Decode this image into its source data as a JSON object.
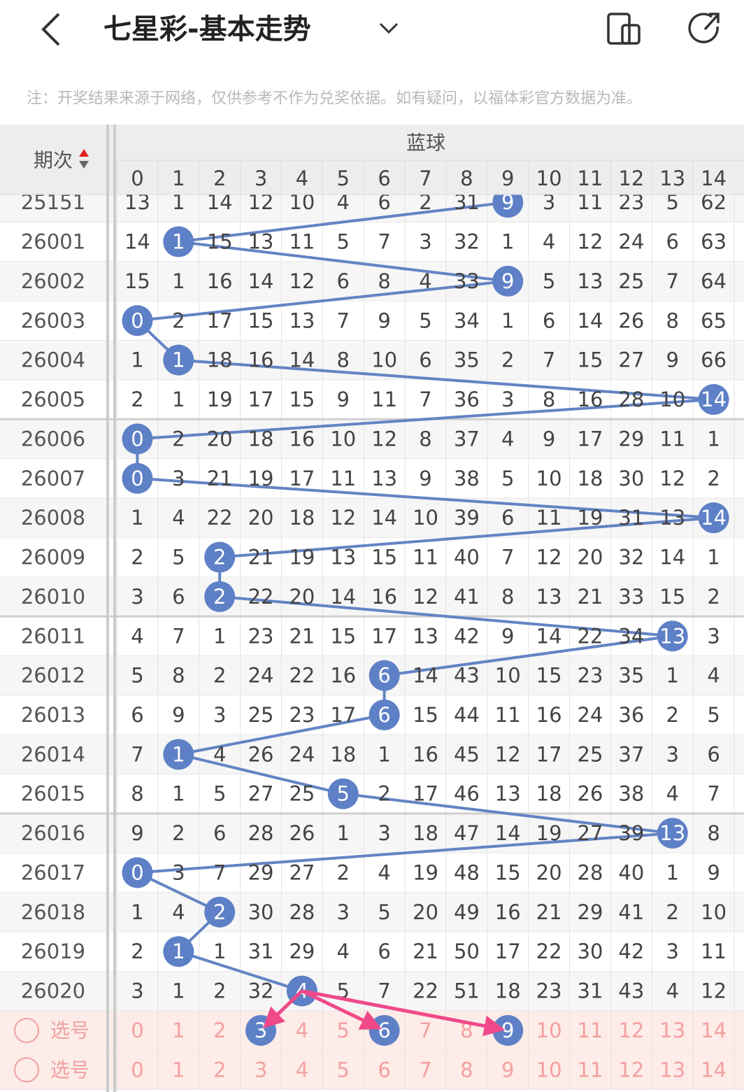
{
  "header": {
    "title": "七星彩-基本走势",
    "notice": "注：开奖结果来源于网络，仅供参考不作为兑奖依据。如有疑问，以福体彩官方数据为准。"
  },
  "table": {
    "period_header": "期次",
    "group_header": "蓝球",
    "columns": [
      0,
      1,
      2,
      3,
      4,
      5,
      6,
      7,
      8,
      9,
      10,
      11,
      12,
      13,
      14
    ],
    "rows": [
      {
        "period": "25151",
        "ball": 9,
        "cells": [
          13,
          1,
          14,
          12,
          10,
          4,
          6,
          2,
          31,
          9,
          3,
          11,
          23,
          5,
          62
        ]
      },
      {
        "period": "26001",
        "ball": 1,
        "cells": [
          14,
          1,
          15,
          13,
          11,
          5,
          7,
          3,
          32,
          1,
          4,
          12,
          24,
          6,
          63
        ]
      },
      {
        "period": "26002",
        "ball": 9,
        "cells": [
          15,
          1,
          16,
          14,
          12,
          6,
          8,
          4,
          33,
          9,
          5,
          13,
          25,
          7,
          64
        ]
      },
      {
        "period": "26003",
        "ball": 0,
        "cells": [
          0,
          2,
          17,
          15,
          13,
          7,
          9,
          5,
          34,
          1,
          6,
          14,
          26,
          8,
          65
        ]
      },
      {
        "period": "26004",
        "ball": 1,
        "cells": [
          1,
          1,
          18,
          16,
          14,
          8,
          10,
          6,
          35,
          2,
          7,
          15,
          27,
          9,
          66
        ]
      },
      {
        "period": "26005",
        "ball": 14,
        "cells": [
          2,
          1,
          19,
          17,
          15,
          9,
          11,
          7,
          36,
          3,
          8,
          16,
          28,
          10,
          14
        ]
      },
      {
        "period": "26006",
        "ball": 0,
        "cells": [
          0,
          2,
          20,
          18,
          16,
          10,
          12,
          8,
          37,
          4,
          9,
          17,
          29,
          11,
          1
        ]
      },
      {
        "period": "26007",
        "ball": 0,
        "cells": [
          0,
          3,
          21,
          19,
          17,
          11,
          13,
          9,
          38,
          5,
          10,
          18,
          30,
          12,
          2
        ]
      },
      {
        "period": "26008",
        "ball": 14,
        "cells": [
          1,
          4,
          22,
          20,
          18,
          12,
          14,
          10,
          39,
          6,
          11,
          19,
          31,
          13,
          14
        ]
      },
      {
        "period": "26009",
        "ball": 2,
        "cells": [
          2,
          5,
          2,
          21,
          19,
          13,
          15,
          11,
          40,
          7,
          12,
          20,
          32,
          14,
          1
        ]
      },
      {
        "period": "26010",
        "ball": 2,
        "cells": [
          3,
          6,
          2,
          22,
          20,
          14,
          16,
          12,
          41,
          8,
          13,
          21,
          33,
          15,
          2
        ]
      },
      {
        "period": "26011",
        "ball": 13,
        "cells": [
          4,
          7,
          1,
          23,
          21,
          15,
          17,
          13,
          42,
          9,
          14,
          22,
          34,
          13,
          3
        ]
      },
      {
        "period": "26012",
        "ball": 6,
        "cells": [
          5,
          8,
          2,
          24,
          22,
          16,
          6,
          14,
          43,
          10,
          15,
          23,
          35,
          1,
          4
        ]
      },
      {
        "period": "26013",
        "ball": 6,
        "cells": [
          6,
          9,
          3,
          25,
          23,
          17,
          6,
          15,
          44,
          11,
          16,
          24,
          36,
          2,
          5
        ]
      },
      {
        "period": "26014",
        "ball": 1,
        "cells": [
          7,
          1,
          4,
          26,
          24,
          18,
          1,
          16,
          45,
          12,
          17,
          25,
          37,
          3,
          6
        ]
      },
      {
        "period": "26015",
        "ball": 5,
        "cells": [
          8,
          1,
          5,
          27,
          25,
          5,
          2,
          17,
          46,
          13,
          18,
          26,
          38,
          4,
          7
        ]
      },
      {
        "period": "26016",
        "ball": 13,
        "cells": [
          9,
          2,
          6,
          28,
          26,
          1,
          3,
          18,
          47,
          14,
          19,
          27,
          39,
          13,
          8
        ]
      },
      {
        "period": "26017",
        "ball": 0,
        "cells": [
          0,
          3,
          7,
          29,
          27,
          2,
          4,
          19,
          48,
          15,
          20,
          28,
          40,
          1,
          9
        ]
      },
      {
        "period": "26018",
        "ball": 2,
        "cells": [
          1,
          4,
          2,
          30,
          28,
          3,
          5,
          20,
          49,
          16,
          21,
          29,
          41,
          2,
          10
        ]
      },
      {
        "period": "26019",
        "ball": 1,
        "cells": [
          2,
          1,
          1,
          31,
          29,
          4,
          6,
          21,
          50,
          17,
          22,
          30,
          42,
          3,
          11
        ]
      },
      {
        "period": "26020",
        "ball": 4,
        "cells": [
          3,
          1,
          2,
          32,
          4,
          5,
          7,
          22,
          51,
          18,
          23,
          31,
          43,
          4,
          12
        ]
      }
    ],
    "select_rows": [
      {
        "label": "选号",
        "selected": [
          3,
          6,
          9
        ]
      },
      {
        "label": "选号",
        "selected": []
      }
    ]
  }
}
